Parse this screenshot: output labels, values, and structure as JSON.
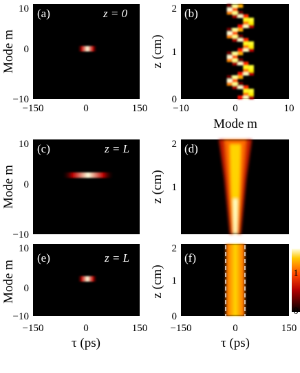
{
  "chart_data": [
    {
      "type": "heatmap",
      "id": "a",
      "panel_label": "(a)",
      "annotation": "z = 0",
      "xlabel": "τ (ps)",
      "ylabel": "Mode m",
      "xlim": [
        -150,
        150
      ],
      "ylim": [
        -10,
        10
      ],
      "xticks": [
        "−150",
        "0",
        "150"
      ],
      "yticks": [
        "10",
        "0",
        "−10"
      ],
      "show_xticklabels": true,
      "show_xlabel": false,
      "feature": {
        "kind": "bar",
        "center_x": 0,
        "half_width": 20,
        "y": 0,
        "peak": 1.0
      }
    },
    {
      "type": "heatmap",
      "id": "b",
      "panel_label": "(b)",
      "annotation": "",
      "xlabel": "Mode m",
      "ylabel": "z (cm)",
      "xlim": [
        -10,
        10
      ],
      "ylim": [
        0,
        2
      ],
      "xticks": [
        "−10",
        "0",
        "10"
      ],
      "yticks": [
        "2",
        "1",
        "0"
      ],
      "show_xticklabels": true,
      "show_xlabel": true,
      "feature": {
        "kind": "oscillating_modes",
        "modes": [
          -1,
          0,
          1,
          2,
          3
        ],
        "period_cm": 0.5,
        "peak": 1.0
      }
    },
    {
      "type": "heatmap",
      "id": "c",
      "panel_label": "(c)",
      "annotation": "z = L",
      "xlabel": "τ (ps)",
      "ylabel": "Mode m",
      "xlim": [
        -150,
        150
      ],
      "ylim": [
        -10,
        10
      ],
      "xticks": [],
      "yticks": [
        "10",
        "0",
        "−10"
      ],
      "show_xticklabels": false,
      "show_xlabel": false,
      "feature": {
        "kind": "bar",
        "center_x": 0,
        "half_width": 60,
        "y": 2,
        "peak": 1.0
      }
    },
    {
      "type": "heatmap",
      "id": "d",
      "panel_label": "(d)",
      "annotation": "",
      "xlabel": "τ (ps)",
      "ylabel": "z (cm)",
      "xlim": [
        -150,
        150
      ],
      "ylim": [
        0,
        2
      ],
      "xticks": [],
      "yticks": [
        "2",
        "1"
      ],
      "show_xticklabels": false,
      "show_xlabel": false,
      "feature": {
        "kind": "broadening",
        "width_start_ps": 10,
        "width_end_ps": 32,
        "peak": 1.0
      }
    },
    {
      "type": "heatmap",
      "id": "e",
      "panel_label": "(e)",
      "annotation": "z = L",
      "xlabel": "τ (ps)",
      "ylabel": "Mode m",
      "xlim": [
        -150,
        150
      ],
      "ylim": [
        -10,
        10
      ],
      "xticks": [
        "−150",
        "0",
        "150"
      ],
      "yticks": [
        "10",
        "0",
        "−10"
      ],
      "show_xticklabels": true,
      "show_xlabel": true,
      "feature": {
        "kind": "bar",
        "center_x": 0,
        "half_width": 20,
        "y": 2,
        "peak": 1.0
      }
    },
    {
      "type": "heatmap",
      "id": "f",
      "panel_label": "(f)",
      "annotation": "",
      "xlabel": "τ (ps)",
      "ylabel": "z (cm)",
      "xlim": [
        -150,
        150
      ],
      "ylim": [
        0,
        2
      ],
      "xticks": [
        "−150",
        "0",
        "150"
      ],
      "yticks": [
        "2",
        "1",
        "0"
      ],
      "show_xticklabels": true,
      "show_xlabel": true,
      "feature": {
        "kind": "constant",
        "width_ps": 22,
        "dashed_lines_ps": [
          -26,
          26
        ],
        "peak": 1.0
      }
    }
  ],
  "colorbar": {
    "min_label": "0",
    "max_label": "1",
    "colormap": "hot",
    "range": [
      0,
      1
    ]
  }
}
